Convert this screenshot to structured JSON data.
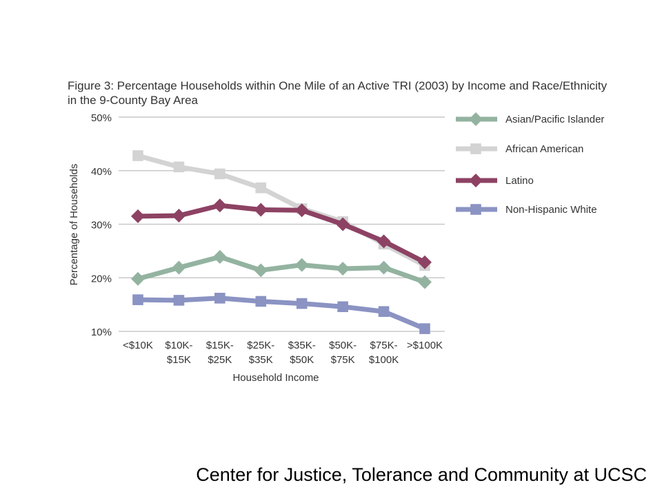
{
  "slide": {
    "footer": "Center for Justice, Tolerance and Community at UCSC"
  },
  "chart_data": {
    "type": "line",
    "title": "Figure 3: Percentage Households within One Mile of an Active TRI (2003) by Income and Race/Ethnicity in the 9-County Bay Area",
    "xlabel": "Household Income",
    "ylabel": "Percentage of Households",
    "categories": [
      [
        "<$10K"
      ],
      [
        "$10K-",
        "$15K"
      ],
      [
        "$15K-",
        "$25K"
      ],
      [
        "$25K-",
        "$35K"
      ],
      [
        "$35K-",
        "$50K"
      ],
      [
        "$50K-",
        "$75K"
      ],
      [
        "$75K-",
        "$100K"
      ],
      [
        ">$100K"
      ]
    ],
    "ylim": [
      10,
      50
    ],
    "yticks": [
      10,
      20,
      30,
      40,
      50
    ],
    "ytick_labels": [
      "10%",
      "20%",
      "30%",
      "40%",
      "50%"
    ],
    "grid": true,
    "legend_position": "right",
    "series": [
      {
        "name": "Asian/Pacific Islander",
        "color": "#93b3a0",
        "marker": "diamond",
        "values": [
          19.8,
          21.9,
          23.9,
          21.4,
          22.4,
          21.7,
          21.9,
          19.2
        ]
      },
      {
        "name": "African American",
        "color": "#d3d3d3",
        "marker": "square",
        "values": [
          42.8,
          40.7,
          39.4,
          36.8,
          32.9,
          30.5,
          26.3,
          22.3
        ]
      },
      {
        "name": "Latino",
        "color": "#8d4263",
        "marker": "diamond",
        "values": [
          31.5,
          31.6,
          33.5,
          32.7,
          32.6,
          30.0,
          26.8,
          22.9
        ]
      },
      {
        "name": "Non-Hispanic White",
        "color": "#8b93c3",
        "marker": "square",
        "values": [
          15.9,
          15.8,
          16.2,
          15.6,
          15.2,
          14.6,
          13.7,
          10.5
        ]
      }
    ]
  }
}
